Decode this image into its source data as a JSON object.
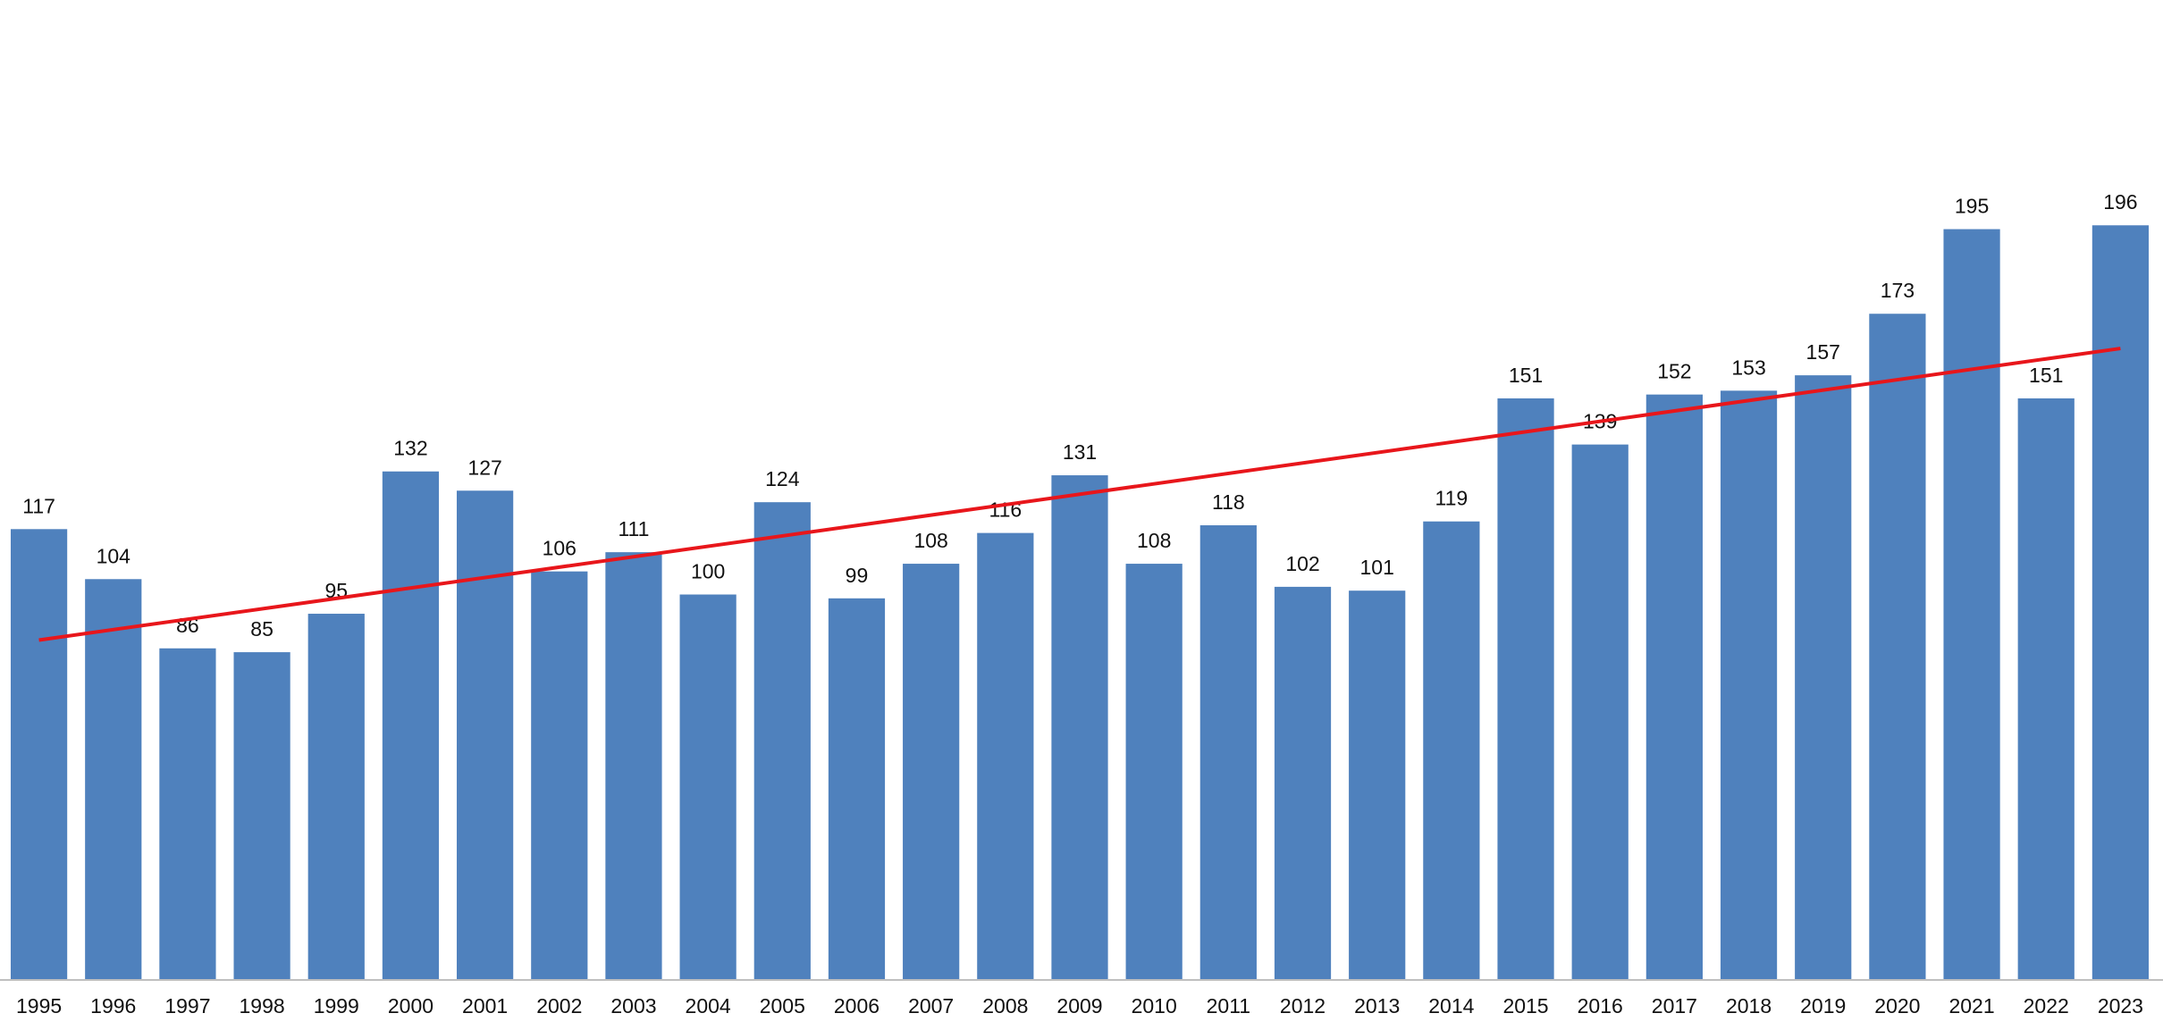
{
  "chart_data": {
    "type": "bar",
    "categories": [
      "1995",
      "1996",
      "1997",
      "1998",
      "1999",
      "2000",
      "2001",
      "2002",
      "2003",
      "2004",
      "2005",
      "2006",
      "2007",
      "2008",
      "2009",
      "2010",
      "2011",
      "2012",
      "2013",
      "2014",
      "2015",
      "2016",
      "2017",
      "2018",
      "2019",
      "2020",
      "2021",
      "2022",
      "2023"
    ],
    "values": [
      117,
      104,
      86,
      85,
      95,
      132,
      127,
      106,
      111,
      100,
      124,
      99,
      108,
      116,
      131,
      108,
      118,
      102,
      101,
      119,
      151,
      139,
      152,
      153,
      157,
      173,
      195,
      151,
      196
    ],
    "color": "#4f81bd",
    "ylim": [
      0,
      200
    ],
    "trendline": true,
    "trendline_color": "#e8161b"
  }
}
